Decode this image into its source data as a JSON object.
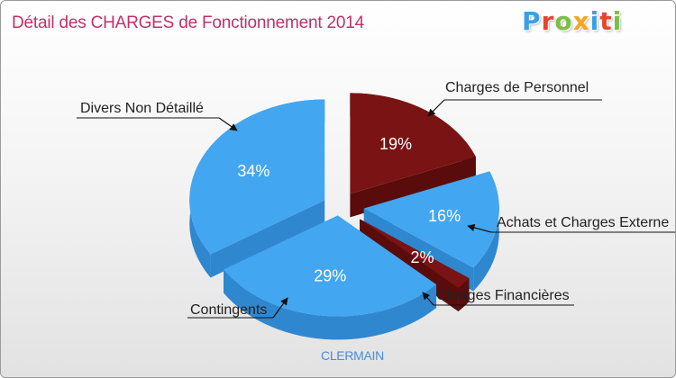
{
  "chart_data": {
    "type": "pie",
    "title": "Détail des CHARGES de Fonctionnement 2014",
    "categories": [
      "Charges de Personnel",
      "Achats et Charges Externes",
      "Charges Financières",
      "Contingents",
      "Divers Non Détaillé"
    ],
    "values": [
      19,
      16,
      2,
      29,
      34
    ],
    "value_labels": [
      "19%",
      "16%",
      "2%",
      "29%",
      "34%"
    ],
    "colors": [
      "#7a1414",
      "#43a6f0",
      "#7a1414",
      "#43a6f0",
      "#43a6f0"
    ],
    "side_colors": [
      "#5a0c0c",
      "#2f87cf",
      "#5a0c0c",
      "#2f87cf",
      "#2f87cf"
    ],
    "xlabel": "CLERMAIN",
    "display_labels": [
      "Charges de Personnel",
      "Achats et Charges Externe",
      "Charges Financières",
      "Contingents",
      "Divers Non Détaillé"
    ]
  },
  "brand": {
    "letters": [
      "P",
      "r",
      "o",
      "x",
      "i",
      "t",
      "i"
    ],
    "colors": [
      "#3aa0e6",
      "#e8452e",
      "#7bc043",
      "#f5a623",
      "#3aa0e6",
      "#e8452e",
      "#7bc043"
    ]
  }
}
